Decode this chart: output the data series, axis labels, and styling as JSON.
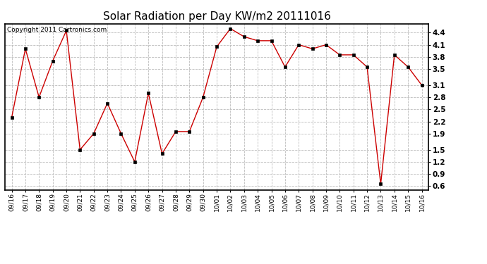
{
  "title": "Solar Radiation per Day KW/m2 20111016",
  "copyright_text": "Copyright 2011 Cartronics.com",
  "dates": [
    "09/16",
    "09/17",
    "09/18",
    "09/19",
    "09/20",
    "09/21",
    "09/22",
    "09/23",
    "09/24",
    "09/25",
    "09/26",
    "09/27",
    "09/28",
    "09/29",
    "09/30",
    "10/01",
    "10/02",
    "10/03",
    "10/04",
    "10/05",
    "10/06",
    "10/07",
    "10/08",
    "10/09",
    "10/10",
    "10/11",
    "10/12",
    "10/13",
    "10/14",
    "10/15",
    "10/16"
  ],
  "values": [
    2.3,
    4.0,
    2.8,
    3.7,
    4.45,
    1.5,
    1.9,
    2.65,
    1.9,
    1.2,
    2.9,
    1.4,
    1.95,
    1.95,
    2.8,
    4.05,
    4.5,
    4.3,
    4.2,
    4.2,
    3.55,
    4.1,
    4.0,
    4.1,
    3.85,
    3.85,
    3.55,
    0.65,
    3.85,
    3.55,
    3.1
  ],
  "line_color": "#cc0000",
  "marker_color": "#000000",
  "background_color": "#ffffff",
  "grid_color": "#bbbbbb",
  "ylim": [
    0.5,
    4.62
  ],
  "yticks": [
    0.6,
    0.9,
    1.2,
    1.5,
    1.9,
    2.2,
    2.5,
    2.8,
    3.1,
    3.5,
    3.8,
    4.1,
    4.4
  ],
  "title_fontsize": 11,
  "copyright_fontsize": 6.5,
  "tick_fontsize": 6.5,
  "ytick_fontsize": 7.5
}
